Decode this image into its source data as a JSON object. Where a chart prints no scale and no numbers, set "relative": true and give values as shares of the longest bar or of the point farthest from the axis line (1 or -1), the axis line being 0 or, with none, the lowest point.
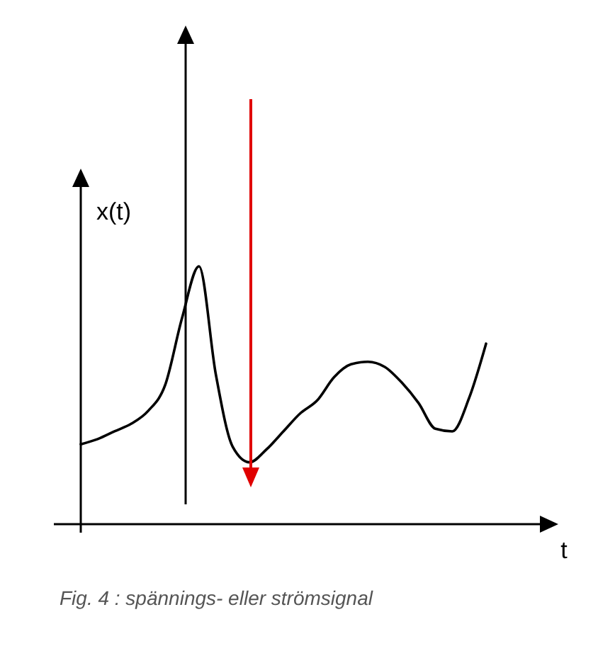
{
  "chart_data": {
    "type": "line",
    "relative": true,
    "xlabel": "t",
    "ylabel": "x(t)",
    "categories": [
      null,
      null,
      null,
      null,
      null,
      null,
      null,
      null,
      null,
      null,
      null,
      null,
      null,
      null,
      null,
      null,
      null,
      null,
      null,
      null,
      null,
      null,
      null,
      null,
      null
    ],
    "series": [
      {
        "color": "#000000",
        "values": [
          0.31,
          0.33,
          0.36,
          0.39,
          0.44,
          0.54,
          0.8,
          1,
          0.58,
          0.3,
          0.24,
          0.29,
          0.36,
          0.43,
          0.48,
          0.57,
          0.62,
          0.63,
          0.61,
          0.55,
          0.47,
          0.37,
          0.36,
          0.49,
          0.7
        ]
      }
    ],
    "annotations": [
      "Fig. 4 : spännings- eller strömsignal"
    ]
  }
}
